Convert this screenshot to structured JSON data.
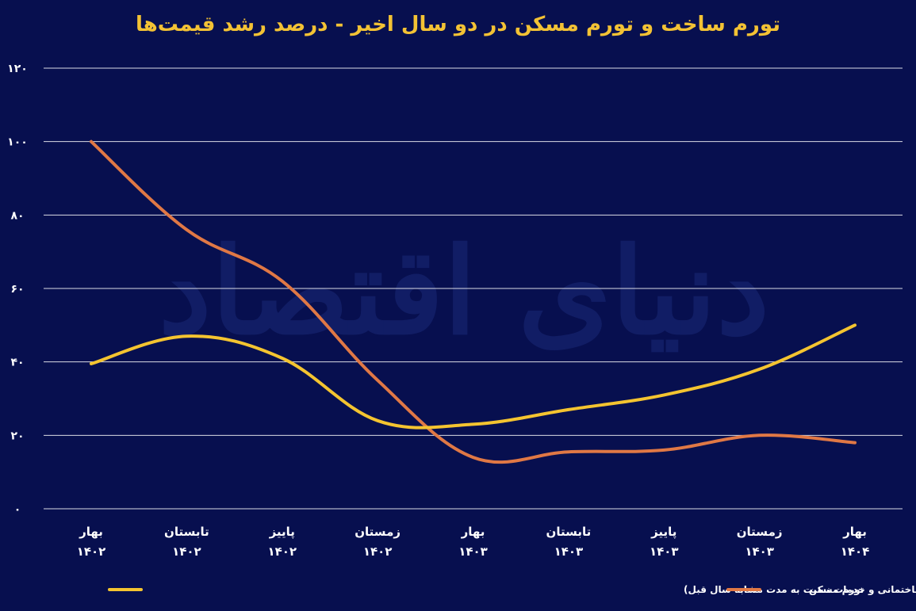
{
  "colors": {
    "background": "#070f4f",
    "title": "#f3c234",
    "grid": "#ffffff",
    "series_construction": "#f4c430",
    "series_housing": "#e07845"
  },
  "watermark": "دنیای اقتصاد",
  "chart_data": {
    "type": "line",
    "title": "تورم ساخت و تورم مسکن در دو سال اخیر - درصد رشد قیمت‌ها",
    "categories": [
      [
        "بهار",
        "۱۴۰۲"
      ],
      [
        "تابستان",
        "۱۴۰۲"
      ],
      [
        "پاییز",
        "۱۴۰۲"
      ],
      [
        "زمستان",
        "۱۴۰۲"
      ],
      [
        "بهار",
        "۱۴۰۳"
      ],
      [
        "تابستان",
        "۱۴۰۳"
      ],
      [
        "پاییز",
        "۱۴۰۳"
      ],
      [
        "زمستان",
        "۱۴۰۳"
      ],
      [
        "بهار",
        "۱۴۰۴"
      ]
    ],
    "yticks": [
      "۰",
      "۲۰",
      "۴۰",
      "۶۰",
      "۸۰",
      "۱۰۰",
      "۱۲۰"
    ],
    "ylim": [
      0,
      120
    ],
    "grid": true,
    "legend_position": "bottom",
    "series": [
      {
        "name": "تورم ساخت مسکن در تهران (درصد تغییرات شاخص قیمت مصالح ساختمانی و خدمات نسبت به مدت مشابه سال قبل)",
        "color": "#f4c430",
        "values": [
          39.5,
          47,
          41,
          24,
          23,
          27,
          31,
          38,
          50
        ]
      },
      {
        "name": "تورم مسکن",
        "color": "#e07845",
        "values": [
          100,
          76,
          62,
          35,
          14,
          15.5,
          16,
          20,
          18
        ]
      }
    ]
  }
}
